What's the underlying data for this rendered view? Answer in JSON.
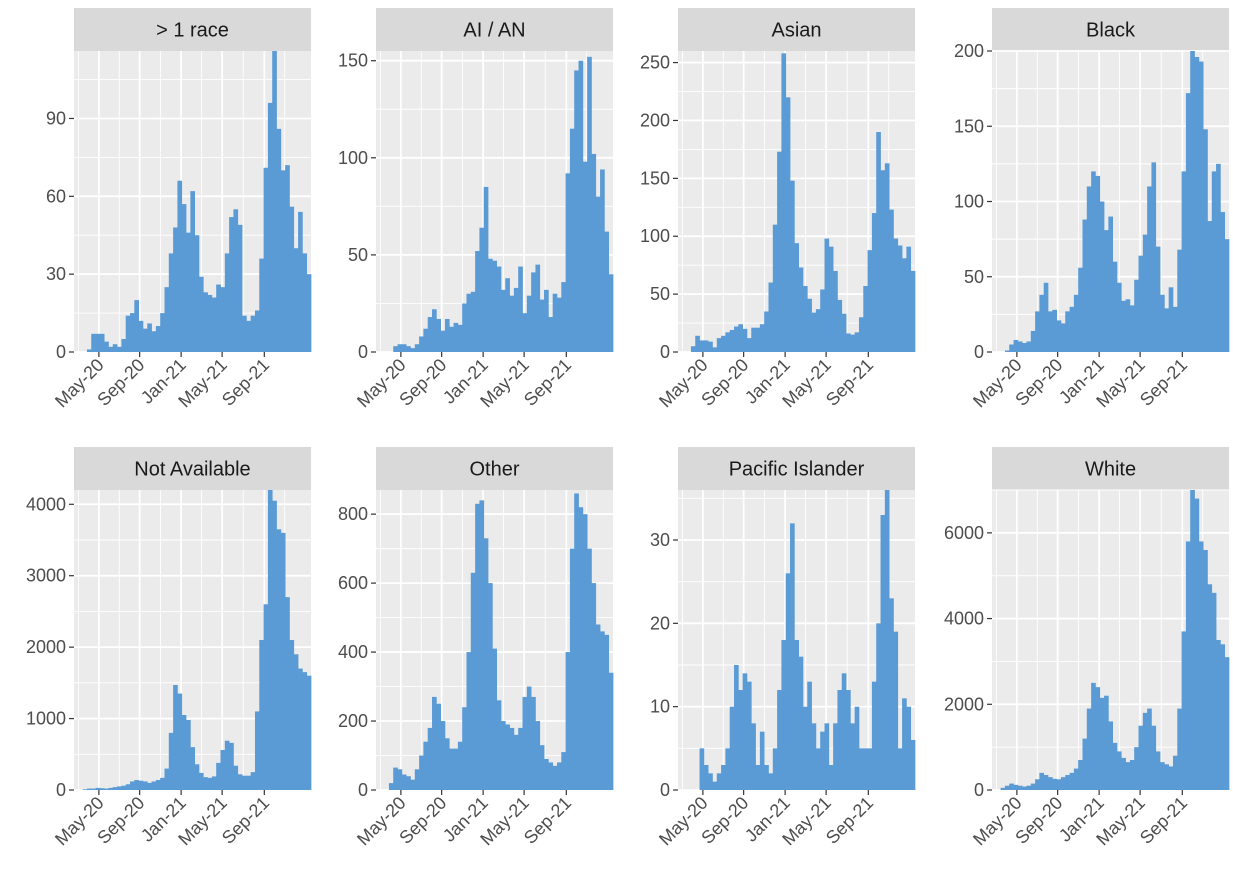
{
  "figure": {
    "panel_bg": "#ebebeb",
    "strip_bg": "#d9d9d9",
    "bar_color": "#5b9bd5",
    "grid_color": "#ffffff"
  },
  "chart_data": [
    {
      "type": "bar",
      "title": "> 1 race",
      "xlabel": "",
      "ylabel": "",
      "x_tick_labels": [
        "May-20",
        "Sep-20",
        "Jan-21",
        "May-21",
        "Sep-21"
      ],
      "y_ticks": [
        0,
        30,
        60,
        90
      ],
      "ylim": [
        0,
        116
      ],
      "values": [
        0,
        0,
        0,
        1,
        7,
        7,
        7,
        4,
        2,
        3,
        2,
        5,
        14,
        15,
        20,
        12,
        9,
        11,
        8,
        10,
        15,
        25,
        38,
        48,
        66,
        57,
        46,
        62,
        45,
        29,
        23,
        22,
        21,
        26,
        25,
        38,
        52,
        55,
        49,
        14,
        12,
        14,
        16,
        36,
        71,
        96,
        116,
        86,
        70,
        72,
        56,
        40,
        54,
        38,
        30
      ]
    },
    {
      "type": "bar",
      "title": "AI / AN",
      "xlabel": "",
      "ylabel": "",
      "x_tick_labels": [
        "May-20",
        "Sep-20",
        "Jan-21",
        "May-21",
        "Sep-21"
      ],
      "y_ticks": [
        0,
        50,
        100,
        150
      ],
      "ylim": [
        0,
        155
      ],
      "values": [
        0,
        0,
        0,
        0,
        3,
        4,
        4,
        3,
        2,
        4,
        8,
        12,
        18,
        22,
        17,
        11,
        17,
        13,
        15,
        14,
        25,
        30,
        31,
        52,
        64,
        85,
        48,
        47,
        44,
        32,
        38,
        29,
        33,
        44,
        20,
        29,
        41,
        45,
        27,
        32,
        18,
        30,
        28,
        36,
        92,
        115,
        145,
        150,
        98,
        152,
        102,
        80,
        94,
        62,
        40
      ]
    },
    {
      "type": "bar",
      "title": "Asian",
      "xlabel": "",
      "ylabel": "",
      "x_tick_labels": [
        "May-20",
        "Sep-20",
        "Jan-21",
        "May-21",
        "Sep-21"
      ],
      "y_ticks": [
        0,
        50,
        100,
        150,
        200,
        250
      ],
      "ylim": [
        0,
        260
      ],
      "values": [
        0,
        0,
        0,
        5,
        14,
        10,
        10,
        9,
        4,
        12,
        14,
        17,
        19,
        22,
        24,
        20,
        12,
        21,
        21,
        24,
        35,
        60,
        110,
        173,
        258,
        220,
        148,
        94,
        73,
        57,
        46,
        34,
        37,
        54,
        98,
        91,
        70,
        45,
        33,
        16,
        15,
        17,
        30,
        57,
        88,
        120,
        190,
        157,
        163,
        123,
        98,
        92,
        81,
        91,
        70
      ]
    },
    {
      "type": "bar",
      "title": "Black",
      "xlabel": "",
      "ylabel": "",
      "x_tick_labels": [
        "May-20",
        "Sep-20",
        "Jan-21",
        "May-21",
        "Sep-21"
      ],
      "y_ticks": [
        0,
        50,
        100,
        150,
        200
      ],
      "ylim": [
        0,
        200
      ],
      "values": [
        0,
        0,
        0,
        1,
        5,
        8,
        7,
        6,
        7,
        14,
        27,
        38,
        46,
        27,
        28,
        21,
        19,
        27,
        30,
        38,
        56,
        88,
        110,
        120,
        117,
        100,
        81,
        90,
        60,
        46,
        34,
        35,
        31,
        48,
        64,
        78,
        110,
        126,
        70,
        38,
        29,
        43,
        30,
        68,
        120,
        172,
        200,
        196,
        193,
        148,
        87,
        120,
        125,
        93,
        75
      ]
    },
    {
      "type": "bar",
      "title": "Not Available",
      "xlabel": "",
      "ylabel": "",
      "x_tick_labels": [
        "May-20",
        "Sep-20",
        "Jan-21",
        "May-21",
        "Sep-21"
      ],
      "y_ticks": [
        0,
        1000,
        2000,
        3000,
        4000
      ],
      "ylim": [
        0,
        4200
      ],
      "values": [
        0,
        0,
        10,
        20,
        20,
        30,
        25,
        20,
        30,
        40,
        50,
        60,
        80,
        120,
        140,
        130,
        120,
        100,
        120,
        140,
        170,
        300,
        800,
        1470,
        1350,
        1050,
        980,
        600,
        360,
        240,
        180,
        170,
        190,
        380,
        560,
        690,
        660,
        340,
        220,
        200,
        200,
        250,
        1100,
        2100,
        2600,
        4200,
        4050,
        3650,
        3600,
        2700,
        2100,
        1900,
        1700,
        1650,
        1600
      ]
    },
    {
      "type": "bar",
      "title": "Other",
      "xlabel": "",
      "ylabel": "",
      "x_tick_labels": [
        "May-20",
        "Sep-20",
        "Jan-21",
        "May-21",
        "Sep-21"
      ],
      "y_ticks": [
        0,
        200,
        400,
        600,
        800
      ],
      "ylim": [
        0,
        870
      ],
      "values": [
        0,
        0,
        0,
        20,
        65,
        60,
        45,
        40,
        30,
        60,
        100,
        140,
        180,
        270,
        250,
        200,
        150,
        120,
        120,
        140,
        240,
        400,
        630,
        830,
        840,
        730,
        600,
        410,
        260,
        200,
        190,
        180,
        160,
        180,
        270,
        300,
        270,
        200,
        130,
        90,
        80,
        70,
        80,
        110,
        400,
        700,
        860,
        820,
        800,
        700,
        600,
        480,
        460,
        450,
        340
      ]
    },
    {
      "type": "bar",
      "title": "Pacific Islander",
      "xlabel": "",
      "ylabel": "",
      "x_tick_labels": [
        "May-20",
        "Sep-20",
        "Jan-21",
        "May-21",
        "Sep-21"
      ],
      "y_ticks": [
        0,
        10,
        20,
        30
      ],
      "ylim": [
        0,
        36
      ],
      "values": [
        0,
        0,
        0,
        0,
        0,
        5,
        3,
        2,
        1,
        2,
        3,
        5,
        10,
        15,
        12,
        14,
        13,
        8,
        3,
        7,
        3,
        2,
        5,
        12,
        18,
        26,
        32,
        18,
        16,
        10,
        13,
        8,
        5,
        7,
        8,
        3,
        8,
        12,
        14,
        12,
        8,
        10,
        5,
        5,
        5,
        13,
        20,
        33,
        36,
        23,
        19,
        5,
        11,
        10,
        6
      ]
    },
    {
      "type": "bar",
      "title": "White",
      "xlabel": "",
      "ylabel": "",
      "x_tick_labels": [
        "May-20",
        "Sep-20",
        "Jan-21",
        "May-21",
        "Sep-21"
      ],
      "y_ticks": [
        0,
        2000,
        4000,
        6000
      ],
      "ylim": [
        0,
        7000
      ],
      "values": [
        0,
        0,
        50,
        100,
        150,
        120,
        100,
        80,
        100,
        150,
        250,
        400,
        350,
        300,
        260,
        250,
        300,
        350,
        400,
        500,
        700,
        1200,
        1900,
        2500,
        2400,
        2150,
        2200,
        1600,
        1100,
        900,
        750,
        650,
        700,
        1000,
        1500,
        1800,
        1900,
        1500,
        900,
        650,
        600,
        550,
        800,
        1900,
        3700,
        5800,
        7000,
        6800,
        5800,
        5600,
        4800,
        4600,
        3500,
        3400,
        3100
      ]
    }
  ]
}
